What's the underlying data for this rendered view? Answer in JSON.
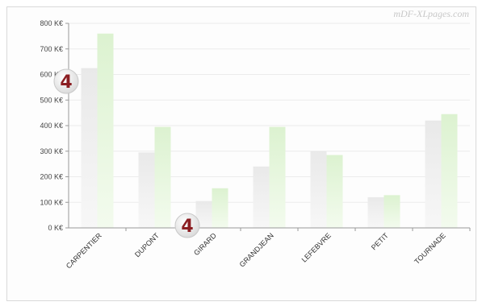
{
  "watermark": "mDF-XLpages.com",
  "chart_data": {
    "type": "bar",
    "categories": [
      "CARPENTIER",
      "DUPONT",
      "GIRARD",
      "GRANDJEAN",
      "LEFEBVRE",
      "PETIT",
      "TOURNADE"
    ],
    "series": [
      {
        "values": [
          625,
          295,
          105,
          240,
          300,
          120,
          420
        ],
        "color": "#e6e6e6"
      },
      {
        "values": [
          760,
          395,
          155,
          395,
          285,
          128,
          445
        ],
        "color": "#dff3d5"
      }
    ],
    "y_ticks": [
      "0 K€",
      "100 K€",
      "200 K€",
      "300 K€",
      "400 K€",
      "500 K€",
      "600 K€",
      "700 K€",
      "800 K€"
    ],
    "ylim": [
      0,
      800
    ],
    "grid": true,
    "title": "",
    "xlabel": "",
    "ylabel": ""
  },
  "badges": {
    "top": "4",
    "bottom": "4"
  }
}
